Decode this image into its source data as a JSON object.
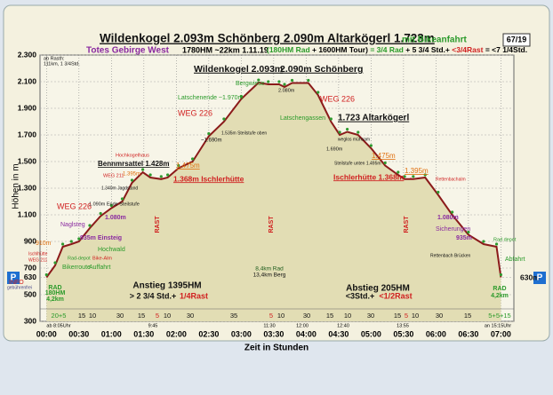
{
  "header": {
    "peaks": "Wildenkogel 2.093m Schönberg 2.090m Altarkögerl 1.723m",
    "bike": "mit Bikeanfahrt",
    "number": "67/19",
    "region": "Totes Gebirge West",
    "stats": "1780HM ~22km  1.11.19",
    "s1": "(180HM Rad",
    "s2": "+ 1600HM Tour)",
    "s3": "= 3/4 Rad",
    "s4": "+ 5 3/4 Std.+",
    "s5": "<3/4Rast",
    "s6": "= <7 1/4Std."
  },
  "chart_data": {
    "type": "area",
    "y_label": "Höhen in m",
    "x_label": "Zeit in Stunden",
    "x": [
      0,
      8,
      15,
      23,
      30,
      40,
      50,
      60,
      70,
      79,
      89,
      96,
      106,
      112,
      122,
      135,
      150,
      164,
      180,
      196,
      205,
      215,
      220,
      227,
      242,
      251,
      263,
      271,
      278,
      288,
      300,
      313,
      325,
      331,
      339,
      350,
      362,
      375,
      390,
      404,
      416,
      420
    ],
    "values": [
      630,
      720,
      860,
      880,
      900,
      1000,
      1090,
      1150,
      1200,
      1340,
      1420,
      1380,
      1368,
      1380,
      1450,
      1500,
      1690,
      1800,
      1970,
      2093,
      2080,
      2080,
      2060,
      2090,
      2090,
      2000,
      1800,
      1700,
      1723,
      1700,
      1600,
      1470,
      1400,
      1368,
      1368,
      1380,
      1250,
      1100,
      950,
      880,
      860,
      630
    ],
    "color": "#8b1a1a",
    "marker_color": "#2f9a2f",
    "fill": "#e2ddb4",
    "grid": true,
    "xlim": [
      -6,
      432
    ],
    "ylim": [
      300,
      2300
    ],
    "yticks": [
      300,
      500,
      630,
      700,
      900,
      {
        "value": 1100,
        "label": "1.100"
      },
      {
        "value": 1300,
        "label": "1.300"
      },
      {
        "value": 1500,
        "label": "1.500"
      },
      {
        "value": 1700,
        "label": "1.700"
      },
      {
        "value": 1900,
        "label": "1.900"
      },
      {
        "value": 2100,
        "label": "2.100"
      },
      {
        "value": 2300,
        "label": "2.300"
      }
    ],
    "xticks": [
      {
        "value": 0,
        "label": "00:00"
      },
      {
        "value": 30,
        "label": "00:30"
      },
      {
        "value": 60,
        "label": "01:00"
      },
      {
        "value": 90,
        "label": "01:30"
      },
      {
        "value": 120,
        "label": "02:00"
      },
      {
        "value": 150,
        "label": "02:30"
      },
      {
        "value": 180,
        "label": "03:00"
      },
      {
        "value": 210,
        "label": "03:30"
      },
      {
        "value": 240,
        "label": "04:00"
      },
      {
        "value": 270,
        "label": "04:30"
      },
      {
        "value": 300,
        "label": "05:00"
      },
      {
        "value": 330,
        "label": "05:30"
      },
      {
        "value": 360,
        "label": "06:00"
      },
      {
        "value": 390,
        "label": "06:30"
      },
      {
        "value": 420,
        "label": "07:00"
      }
    ],
    "annotations": [
      "ab Rasth:",
      "111km, 1 3/4Std.",
      "Wildenkogel 2.093m",
      "2.090m Schönberg",
      "Bergwiese",
      "Latschenende ~1.970m",
      "2.080m",
      "WEG 226",
      "WEG 226",
      "Latschengassen",
      "1.723 Altarkögerl",
      "1.535m Steilstufe oben",
      "~1.690m",
      "weglos mühsam",
      "1.690m",
      "Hochkogelhaus",
      "Bennmrsattel 1.428m",
      "1.475m",
      "Steilstufe unten 1.495m",
      "1.475m",
      "1.395m",
      "1.395m",
      "WEG 211",
      "1.340m Jagdstand",
      "1.368m Ischlerhütte",
      "Ischlerhütte 1.368m",
      "Rettenbachalm",
      "1.090m Ende Steilstufe",
      "WEG 226",
      "Naglsteg",
      "1.080m",
      "1.080m",
      "Sicherungen",
      "935m Einsteig",
      "935m",
      "Hochwald",
      "910m",
      "Ischlhütte",
      "WEG 211",
      "Rad-depot",
      "Bikerroute",
      "Bike-Alm",
      "Auffahrt",
      "Rettenbach Brücken",
      "Rad depot",
      "Abfahrt",
      "8,4km Rad",
      "13,4km Berg",
      "Anstieg 1395HM",
      "> 2 3/4 Std.+",
      "1/4Rast",
      "Abstieg 205HM",
      "<3Std.+",
      "<1/2Rast",
      "RAD",
      "180HM",
      "4,2km",
      "RAD",
      "4,2km",
      "RAST",
      "RAST",
      "RAST",
      "INFO",
      "gebührenfrei",
      "630m",
      "P",
      "P"
    ],
    "durations": [
      "20+5",
      "15",
      "10",
      "30",
      "15",
      "5",
      "10",
      "30",
      "35",
      "5",
      "10",
      "30",
      "15",
      "10",
      "30",
      "15",
      "5",
      "10",
      "30",
      "15",
      "5+5+15"
    ],
    "clock": [
      "ab 8:05Uhr",
      "9:45",
      "11:30",
      "12:00",
      "12:40",
      "13:55",
      "an 15:15Uhr"
    ]
  }
}
